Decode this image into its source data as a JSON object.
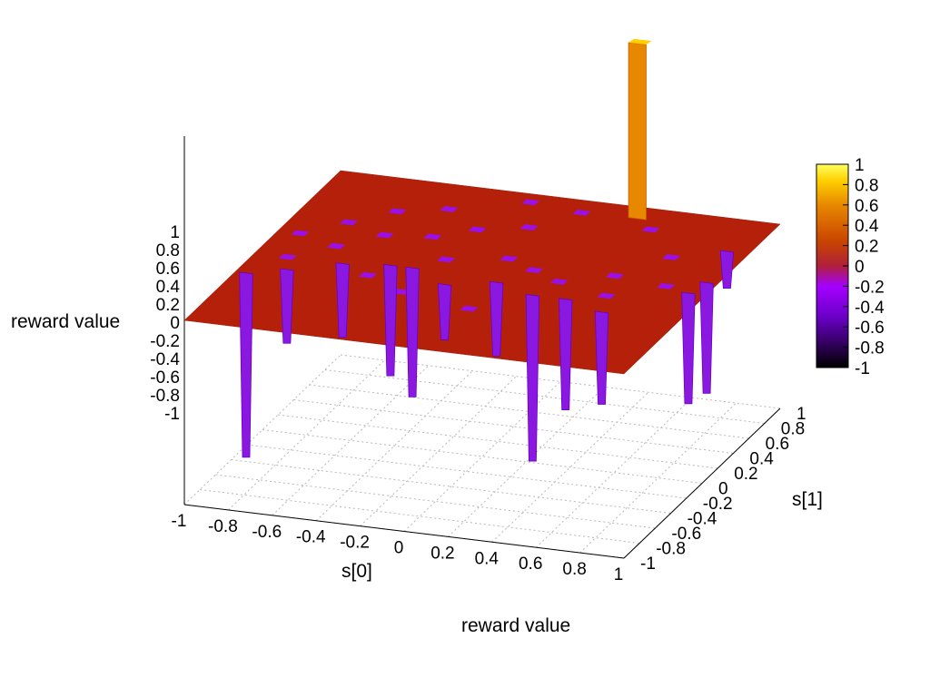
{
  "chart_data": {
    "type": "surface3d",
    "zlabel": "reward value",
    "xlabel": "s[0]",
    "ylabel": "s[1]",
    "key_title": "reward value",
    "xlim": [
      -1,
      1
    ],
    "ylim": [
      -1,
      1
    ],
    "zlim": [
      -1,
      1
    ],
    "cblim": [
      -1,
      1
    ],
    "x_ticks": [
      "-1",
      "-0.8",
      "-0.6",
      "-0.4",
      "-0.2",
      "0",
      "0.2",
      "0.4",
      "0.6",
      "0.8",
      "1"
    ],
    "y_ticks": [
      "-1",
      "-0.8",
      "-0.6",
      "-0.4",
      "-0.2",
      "0",
      "0.2",
      "0.4",
      "0.6",
      "0.8",
      "1"
    ],
    "z_ticks": [
      "1",
      "0.8",
      "0.6",
      "0.4",
      "0.2",
      "0",
      "-0.2",
      "-0.4",
      "-0.6",
      "-0.8",
      "-1"
    ],
    "cb_ticks": [
      "1",
      "0.8",
      "0.6",
      "0.4",
      "0.2",
      "0",
      "-0.2",
      "-0.4",
      "-0.6",
      "-0.8",
      "-1"
    ],
    "baseline": 0,
    "palette": [
      "#000000",
      "#6a00c8",
      "#a500ff",
      "#b0203a",
      "#c84400",
      "#e88800",
      "#ffd000",
      "#ffff60"
    ],
    "grid": true,
    "peak": {
      "x": 0.4,
      "y": 0.9,
      "z": 0.95
    },
    "dips": [
      {
        "x": -0.95,
        "y": -0.35,
        "z": -1.0
      },
      {
        "x": -0.8,
        "y": -0.25,
        "z": -0.4
      },
      {
        "x": -0.6,
        "y": -0.1,
        "z": -0.4
      },
      {
        "x": -0.4,
        "y": -0.05,
        "z": -0.6
      },
      {
        "x": -0.3,
        "y": -0.05,
        "z": -0.7
      },
      {
        "x": -0.1,
        "y": -0.2,
        "z": -0.3
      },
      {
        "x": 0.1,
        "y": -0.1,
        "z": -0.4
      },
      {
        "x": 0.3,
        "y": -0.2,
        "z": -0.9
      },
      {
        "x": 0.45,
        "y": -0.2,
        "z": -0.6
      },
      {
        "x": 0.65,
        "y": -0.3,
        "z": -0.5
      },
      {
        "x": 0.92,
        "y": 0.05,
        "z": -0.6
      },
      {
        "x": 0.95,
        "y": 0.2,
        "z": -0.6
      },
      {
        "x": 0.9,
        "y": 0.6,
        "z": -0.2
      }
    ],
    "small_dips": [
      {
        "x": -0.85,
        "y": -0.1
      },
      {
        "x": -0.7,
        "y": 0.1
      },
      {
        "x": -0.55,
        "y": 0.3
      },
      {
        "x": -0.35,
        "y": 0.35
      },
      {
        "x": -0.2,
        "y": 0.1
      },
      {
        "x": 0.05,
        "y": 0.2
      },
      {
        "x": 0.2,
        "y": 0.1
      },
      {
        "x": 0.35,
        "y": 0.0
      },
      {
        "x": 0.55,
        "y": 0.15
      },
      {
        "x": 0.7,
        "y": 0.45
      },
      {
        "x": -0.6,
        "y": 0.6
      },
      {
        "x": -0.4,
        "y": 0.7
      },
      {
        "x": -0.2,
        "y": 0.5
      },
      {
        "x": 0.0,
        "y": 0.6
      },
      {
        "x": 0.15,
        "y": 0.85
      },
      {
        "x": -0.1,
        "y": 0.9
      },
      {
        "x": 0.5,
        "y": 0.75
      },
      {
        "x": -0.75,
        "y": 0.4
      },
      {
        "x": -0.45,
        "y": -0.2
      },
      {
        "x": 0.1,
        "y": -0.45
      },
      {
        "x": 0.6,
        "y": -0.1
      },
      {
        "x": -0.9,
        "y": 0.2
      },
      {
        "x": 0.8,
        "y": 0.1
      },
      {
        "x": -0.25,
        "y": -0.35
      }
    ]
  }
}
